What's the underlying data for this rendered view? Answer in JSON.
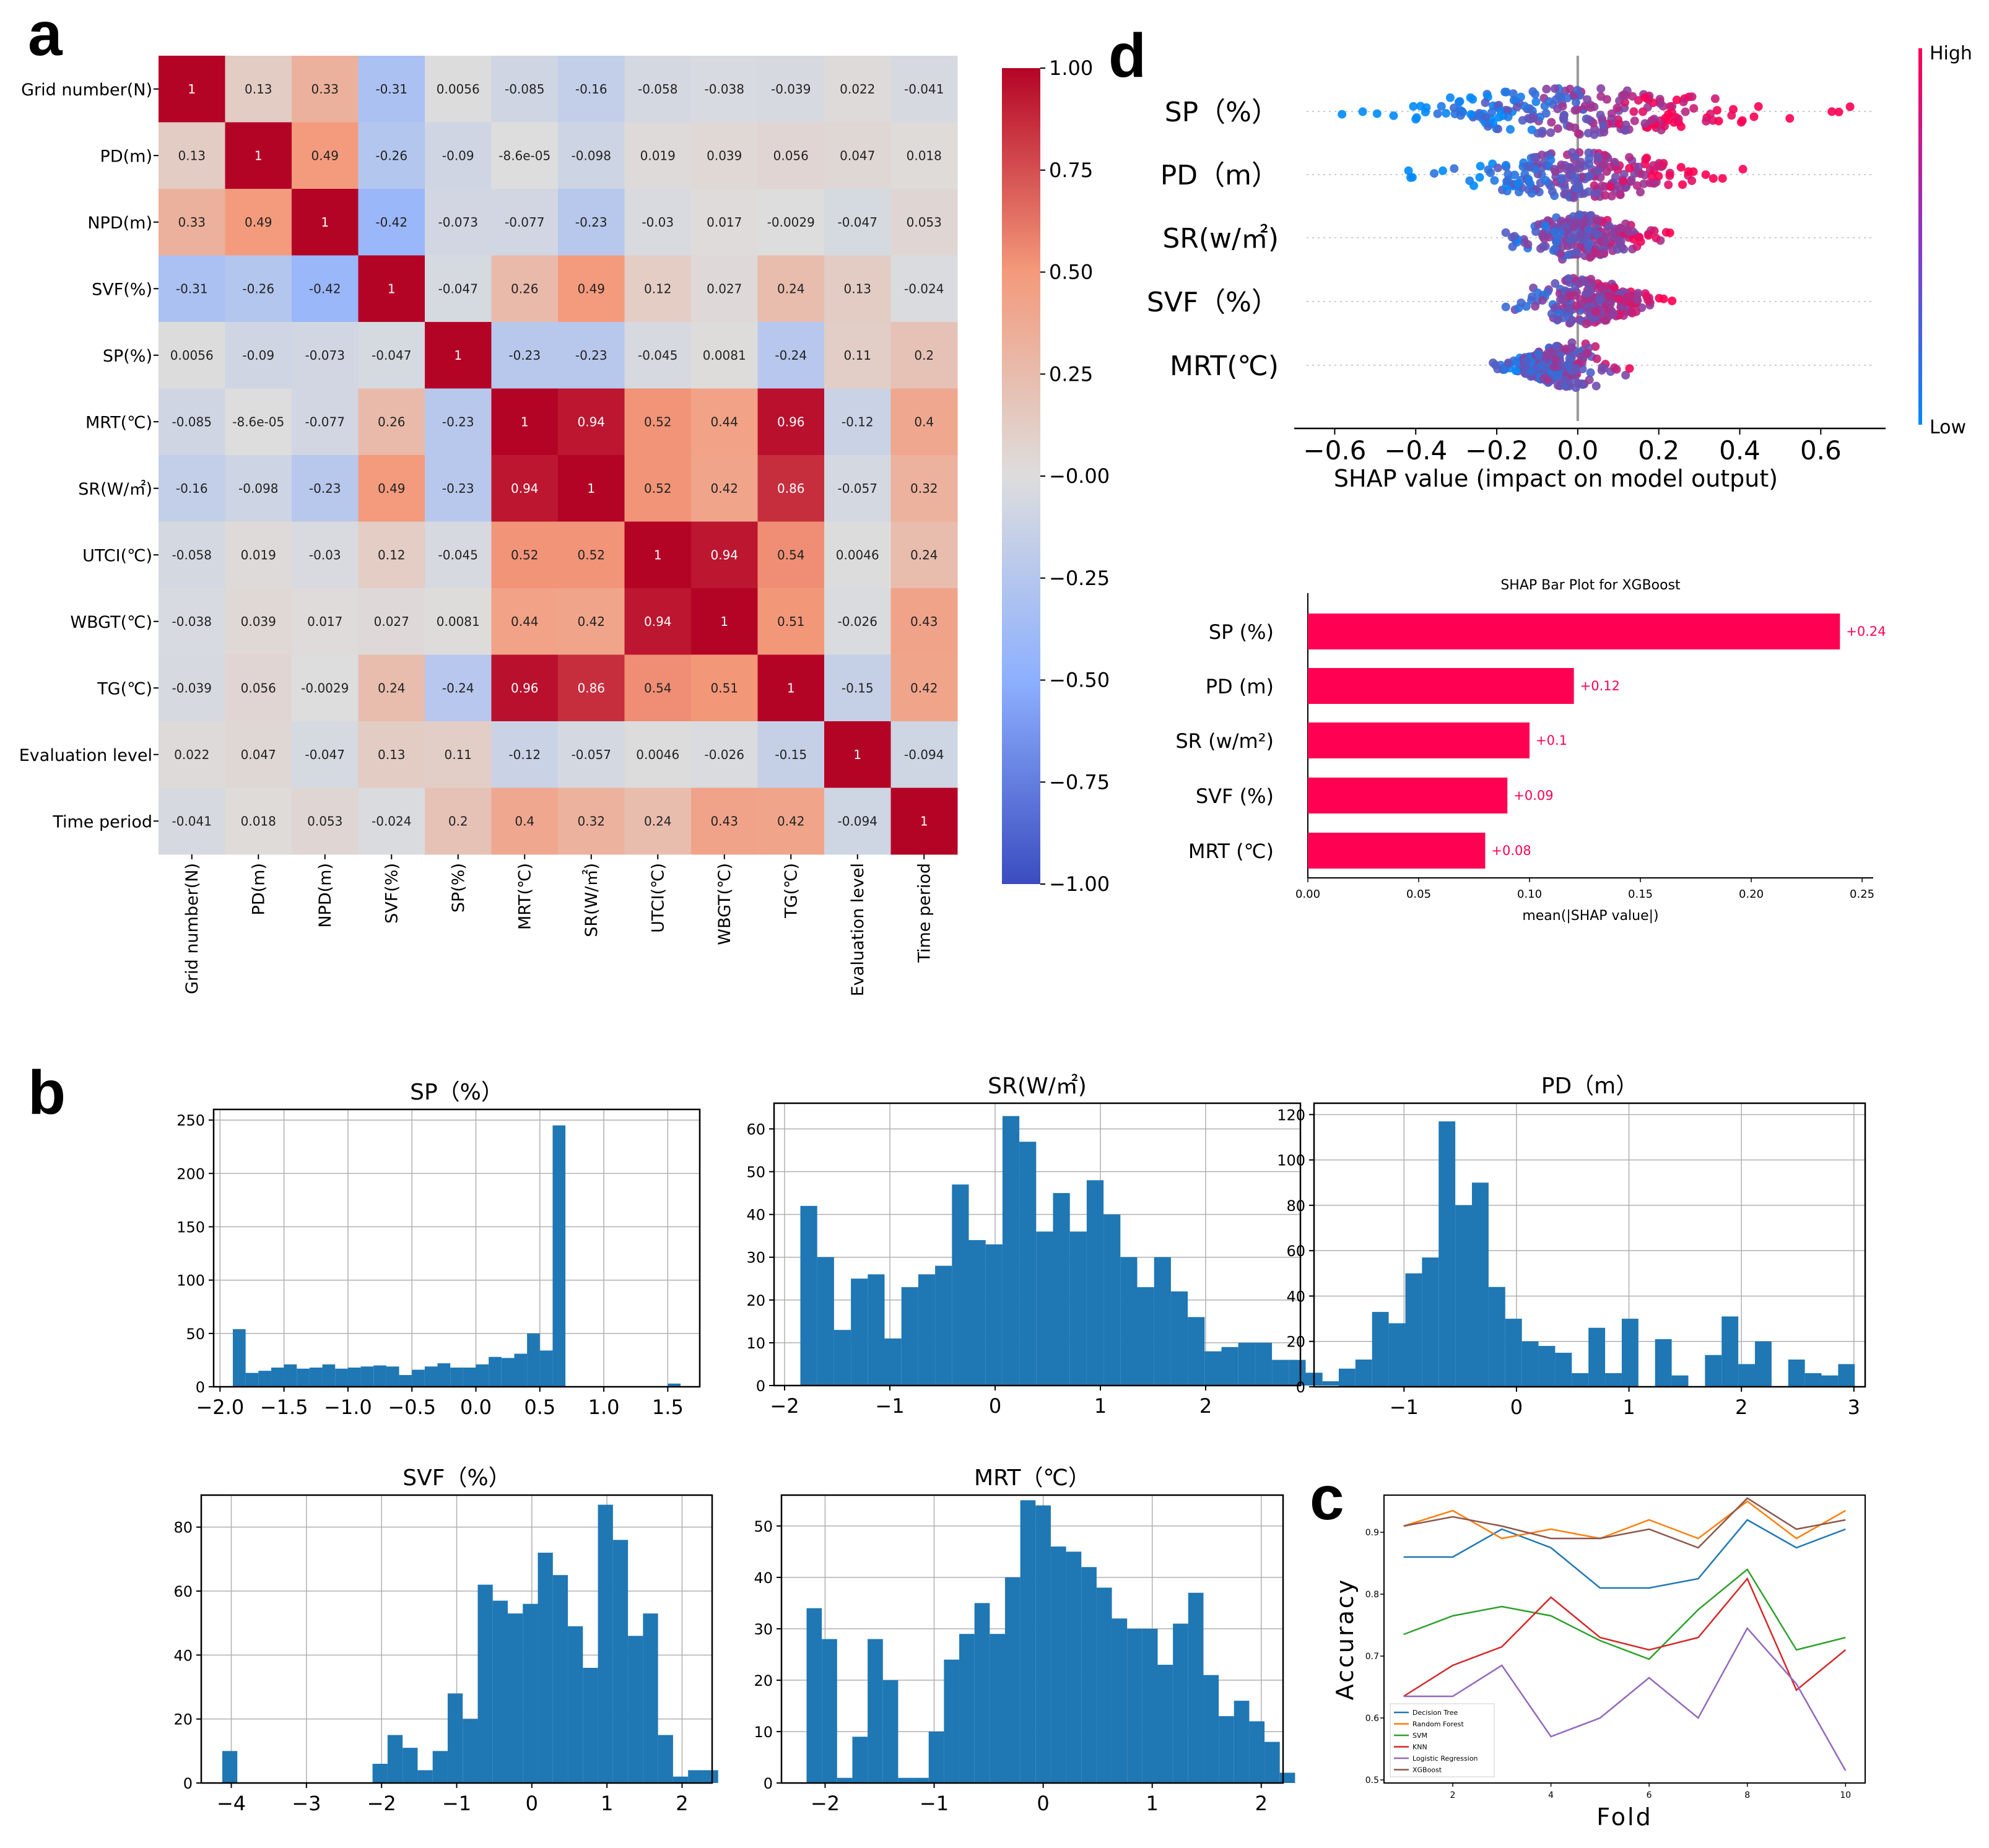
{
  "panel_labels": {
    "a": "a",
    "b": "b",
    "c": "c",
    "d": "d"
  },
  "chart_data": [
    {
      "id": "a",
      "type": "heatmap",
      "labels": [
        "Grid number(N)",
        "PD(m)",
        "NPD(m)",
        "SVF(%)",
        "SP(%)",
        "MRT(℃)",
        "SR(W/㎡)",
        "UTCI(℃)",
        "WBGT(℃)",
        "TG(℃)",
        "Evaluation level",
        "Time period"
      ],
      "matrix": [
        [
          "1",
          "0.13",
          "0.33",
          "-0.31",
          "0.0056",
          "-0.085",
          "-0.16",
          "-0.058",
          "-0.038",
          "-0.039",
          "0.022",
          "-0.041"
        ],
        [
          "0.13",
          "1",
          "0.49",
          "-0.26",
          "-0.09",
          "-8.6e-05",
          "-0.098",
          "0.019",
          "0.039",
          "0.056",
          "0.047",
          "0.018"
        ],
        [
          "0.33",
          "0.49",
          "1",
          "-0.42",
          "-0.073",
          "-0.077",
          "-0.23",
          "-0.03",
          "0.017",
          "-0.0029",
          "-0.047",
          "0.053"
        ],
        [
          "-0.31",
          "-0.26",
          "-0.42",
          "1",
          "-0.047",
          "0.26",
          "0.49",
          "0.12",
          "0.027",
          "0.24",
          "0.13",
          "-0.024"
        ],
        [
          "0.0056",
          "-0.09",
          "-0.073",
          "-0.047",
          "1",
          "-0.23",
          "-0.23",
          "-0.045",
          "0.0081",
          "-0.24",
          "0.11",
          "0.2"
        ],
        [
          "-0.085",
          "-8.6e-05",
          "-0.077",
          "0.26",
          "-0.23",
          "1",
          "0.94",
          "0.52",
          "0.44",
          "0.96",
          "-0.12",
          "0.4"
        ],
        [
          "-0.16",
          "-0.098",
          "-0.23",
          "0.49",
          "-0.23",
          "0.94",
          "1",
          "0.52",
          "0.42",
          "0.86",
          "-0.057",
          "0.32"
        ],
        [
          "-0.058",
          "0.019",
          "-0.03",
          "0.12",
          "-0.045",
          "0.52",
          "0.52",
          "1",
          "0.94",
          "0.54",
          "0.0046",
          "0.24"
        ],
        [
          "-0.038",
          "0.039",
          "0.017",
          "0.027",
          "0.0081",
          "0.44",
          "0.42",
          "0.94",
          "1",
          "0.51",
          "-0.026",
          "0.43"
        ],
        [
          "-0.039",
          "0.056",
          "-0.0029",
          "0.24",
          "-0.24",
          "0.96",
          "0.86",
          "0.54",
          "0.51",
          "1",
          "-0.15",
          "0.42"
        ],
        [
          "0.022",
          "0.047",
          "-0.047",
          "0.13",
          "0.11",
          "-0.12",
          "-0.057",
          "0.0046",
          "-0.026",
          "-0.15",
          "1",
          "-0.094"
        ],
        [
          "-0.041",
          "0.018",
          "0.053",
          "-0.024",
          "0.2",
          "0.4",
          "0.32",
          "0.24",
          "0.43",
          "0.42",
          "-0.094",
          "1"
        ]
      ],
      "colorbar": {
        "min": -1,
        "max": 1,
        "ticks": [
          "1.00",
          "0.75",
          "0.50",
          "0.25",
          "−0.00",
          "−0.25",
          "−0.50",
          "−0.75",
          "−1.00"
        ]
      }
    },
    {
      "id": "b1",
      "type": "bar",
      "title": "SP（%）",
      "bin_start": -1.9,
      "bin_width": 0.1,
      "values": [
        54,
        13,
        15,
        18,
        21,
        17,
        18,
        21,
        17,
        18,
        19,
        20,
        19,
        11,
        16,
        19,
        22,
        18,
        18,
        21,
        28,
        27,
        31,
        50,
        34,
        245,
        0,
        0,
        0,
        0,
        0,
        0,
        0,
        0,
        3
      ],
      "xlim": [
        -2.05,
        1.75
      ],
      "ylim": [
        0,
        260
      ],
      "xticks": [
        -2.0,
        -1.5,
        -1.0,
        -0.5,
        0.0,
        0.5,
        1.0,
        1.5
      ],
      "xtick_labels": [
        "−2.0",
        "−1.5",
        "−1.0",
        "−0.5",
        "0.0",
        "0.5",
        "1.0",
        "1.5"
      ],
      "yticks": [
        0,
        50,
        100,
        150,
        200,
        250
      ]
    },
    {
      "id": "b2",
      "type": "bar",
      "title": "SR(W/㎡)",
      "bin_start": -1.85,
      "bin_width": 0.16,
      "values": [
        42,
        30,
        13,
        25,
        26,
        11,
        23,
        26,
        28,
        47,
        34,
        33,
        63,
        57,
        36,
        45,
        36,
        48,
        40,
        30,
        23,
        30,
        22,
        16,
        8,
        9,
        10,
        10,
        6,
        6,
        3,
        1
      ],
      "xlim": [
        -2.1,
        2.9
      ],
      "ylim": [
        0,
        66
      ],
      "xticks": [
        -2,
        -1,
        0,
        1,
        2
      ],
      "xtick_labels": [
        "−2",
        "−1",
        "0",
        "1",
        "2"
      ],
      "yticks": [
        0,
        10,
        20,
        30,
        40,
        50,
        60
      ]
    },
    {
      "id": "b3",
      "type": "bar",
      "title": "PD（m）",
      "bin_start": -1.58,
      "bin_width": 0.148,
      "values": [
        8,
        12,
        33,
        28,
        50,
        57,
        117,
        80,
        90,
        44,
        30,
        20,
        18,
        15,
        6,
        26,
        6,
        30,
        0,
        21,
        5,
        0,
        14,
        31,
        10,
        20,
        0,
        12,
        6,
        5,
        10
      ],
      "xlim": [
        -1.8,
        3.1
      ],
      "ylim": [
        0,
        125
      ],
      "xticks": [
        -1,
        0,
        1,
        2,
        3
      ],
      "xtick_labels": [
        "−1",
        "0",
        "1",
        "2",
        "3"
      ],
      "yticks": [
        0,
        20,
        40,
        60,
        80,
        100,
        120
      ]
    },
    {
      "id": "b4",
      "type": "bar",
      "title": "SVF（%）",
      "bin_start": -4.12,
      "bin_width": 0.2,
      "values": [
        10,
        0,
        0,
        0,
        0,
        0,
        0,
        0,
        0,
        0,
        6,
        15,
        11,
        4,
        10,
        28,
        20,
        62,
        57,
        53,
        56,
        72,
        65,
        49,
        36,
        87,
        76,
        46,
        53,
        15,
        2,
        4,
        4
      ],
      "xlim": [
        -4.4,
        2.4
      ],
      "ylim": [
        0,
        90
      ],
      "xticks": [
        -4,
        -3,
        -2,
        -1,
        0,
        1,
        2
      ],
      "xtick_labels": [
        "−4",
        "−3",
        "−2",
        "−1",
        "0",
        "1",
        "2"
      ],
      "yticks": [
        0,
        20,
        40,
        60,
        80
      ]
    },
    {
      "id": "b5",
      "type": "bar",
      "title": "MRT（℃）",
      "bin_start": -2.17,
      "bin_width": 0.14,
      "values": [
        34,
        28,
        1,
        9,
        28,
        20,
        1,
        1,
        10,
        24,
        29,
        35,
        29,
        40,
        55,
        54,
        46,
        45,
        42,
        38,
        32,
        30,
        30,
        23,
        31,
        37,
        21,
        13,
        16,
        12,
        8,
        2
      ],
      "xlim": [
        -2.4,
        2.2
      ],
      "ylim": [
        0,
        56
      ],
      "xticks": [
        -2,
        -1,
        0,
        1,
        2
      ],
      "xtick_labels": [
        "−2",
        "−1",
        "0",
        "1",
        "2"
      ],
      "yticks": [
        0,
        10,
        20,
        30,
        40,
        50
      ]
    },
    {
      "id": "c",
      "type": "line",
      "xlabel": "Fold",
      "ylabel": "Accuracy",
      "x": [
        1,
        2,
        3,
        4,
        5,
        6,
        7,
        8,
        9,
        10
      ],
      "xlim": [
        0.6,
        10.4
      ],
      "ylim": [
        0.495,
        0.96
      ],
      "xticks": [
        2,
        4,
        6,
        8,
        10
      ],
      "yticks": [
        0.5,
        0.6,
        0.7,
        0.8,
        0.9
      ],
      "ytick_labels": [
        "0.5",
        "0.6",
        "0.7",
        "0.8",
        "0.9"
      ],
      "series": [
        {
          "name": "Decision Tree",
          "color": "#1f77b4",
          "values": [
            0.86,
            0.86,
            0.905,
            0.875,
            0.81,
            0.81,
            0.825,
            0.92,
            0.875,
            0.905
          ]
        },
        {
          "name": "Random Forest",
          "color": "#ff7f0e",
          "values": [
            0.91,
            0.935,
            0.89,
            0.905,
            0.89,
            0.92,
            0.89,
            0.95,
            0.89,
            0.935
          ]
        },
        {
          "name": "SVM",
          "color": "#2ca02c",
          "values": [
            0.735,
            0.765,
            0.78,
            0.765,
            0.725,
            0.695,
            0.775,
            0.84,
            0.71,
            0.73
          ]
        },
        {
          "name": "KNN",
          "color": "#d62728",
          "values": [
            0.635,
            0.685,
            0.715,
            0.795,
            0.73,
            0.71,
            0.73,
            0.825,
            0.645,
            0.71
          ]
        },
        {
          "name": "Logistic Regression",
          "color": "#9467bd",
          "values": [
            0.635,
            0.635,
            0.685,
            0.57,
            0.6,
            0.665,
            0.6,
            0.745,
            0.655,
            0.515
          ]
        },
        {
          "name": "XGBoost",
          "color": "#8c564b",
          "values": [
            0.91,
            0.925,
            0.91,
            0.89,
            0.89,
            0.905,
            0.875,
            0.955,
            0.905,
            0.92
          ]
        }
      ]
    },
    {
      "id": "d1",
      "type": "scatter",
      "xlabel": "SHAP value (impact on model output)",
      "features": [
        "SP（%）",
        "PD（m）",
        "SR(w/㎡)",
        "SVF（%）",
        "MRT(℃)"
      ],
      "spread": [
        [
          -0.62,
          0.68
        ],
        [
          -0.42,
          0.42
        ],
        [
          -0.22,
          0.25
        ],
        [
          -0.18,
          0.27
        ],
        [
          -0.25,
          0.13
        ]
      ],
      "xlim": [
        -0.7,
        0.76
      ],
      "xticks": [
        -0.6,
        -0.4,
        -0.2,
        0.0,
        0.2,
        0.4,
        0.6
      ],
      "xtick_labels": [
        "−0.6",
        "−0.4",
        "−0.2",
        "0.0",
        "0.2",
        "0.4",
        "0.6"
      ],
      "colorbar": {
        "high": "High",
        "low": "Low",
        "high_color": "#ff0052",
        "low_color": "#008bfb"
      }
    },
    {
      "id": "d2",
      "type": "bar",
      "title": "SHAP Bar Plot for XGBoost",
      "xlabel": "mean(|SHAP value|)",
      "categories": [
        "SP (%)",
        "PD (m)",
        "SR (w/m²)",
        "SVF (%)",
        "MRT (℃)"
      ],
      "values": [
        0.24,
        0.12,
        0.1,
        0.09,
        0.08
      ],
      "value_labels": [
        "+0.24",
        "+0.12",
        "+0.1",
        "+0.09",
        "+0.08"
      ],
      "bar_color": "#ff0052",
      "xlim": [
        0,
        0.255
      ],
      "xticks": [
        0,
        0.05,
        0.1,
        0.15,
        0.2,
        0.25
      ],
      "xtick_labels": [
        "0.00",
        "0.05",
        "0.10",
        "0.15",
        "0.20",
        "0.25"
      ]
    }
  ]
}
